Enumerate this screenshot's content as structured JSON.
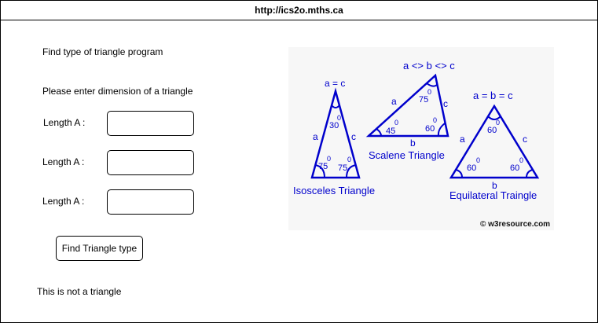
{
  "window": {
    "url": "http://ics2o.mths.ca"
  },
  "form": {
    "heading": "Find type of triangle program",
    "prompt": "Please enter dimension of a triangle",
    "fields": [
      {
        "label": "Length A :",
        "value": ""
      },
      {
        "label": "Length A :",
        "value": ""
      },
      {
        "label": "Length A :",
        "value": ""
      }
    ],
    "submit_label": "Find Triangle type",
    "result": "This is not a triangle"
  },
  "diagram": {
    "line_color": "#0000cc",
    "isosceles": {
      "title": "Isosceles Triangle",
      "top_label": "a = c",
      "left_side": "a",
      "right_side": "c",
      "top_angle": "30",
      "left_angle": "75",
      "right_angle": "75",
      "degree": "0"
    },
    "scalene": {
      "title": "Scalene Triangle",
      "top_label": "a <> b <> c",
      "left_side": "a",
      "right_side": "c",
      "bottom_side": "b",
      "top_angle": "75",
      "left_angle": "45",
      "right_angle": "60",
      "degree": "0"
    },
    "equilateral": {
      "title": "Equilateral Traingle",
      "top_label": "a = b = c",
      "left_side": "a",
      "right_side": "c",
      "bottom_side": "b",
      "top_angle": "60",
      "left_angle": "60",
      "right_angle": "60",
      "degree": "0"
    },
    "copyright": "© w3resource.com"
  }
}
